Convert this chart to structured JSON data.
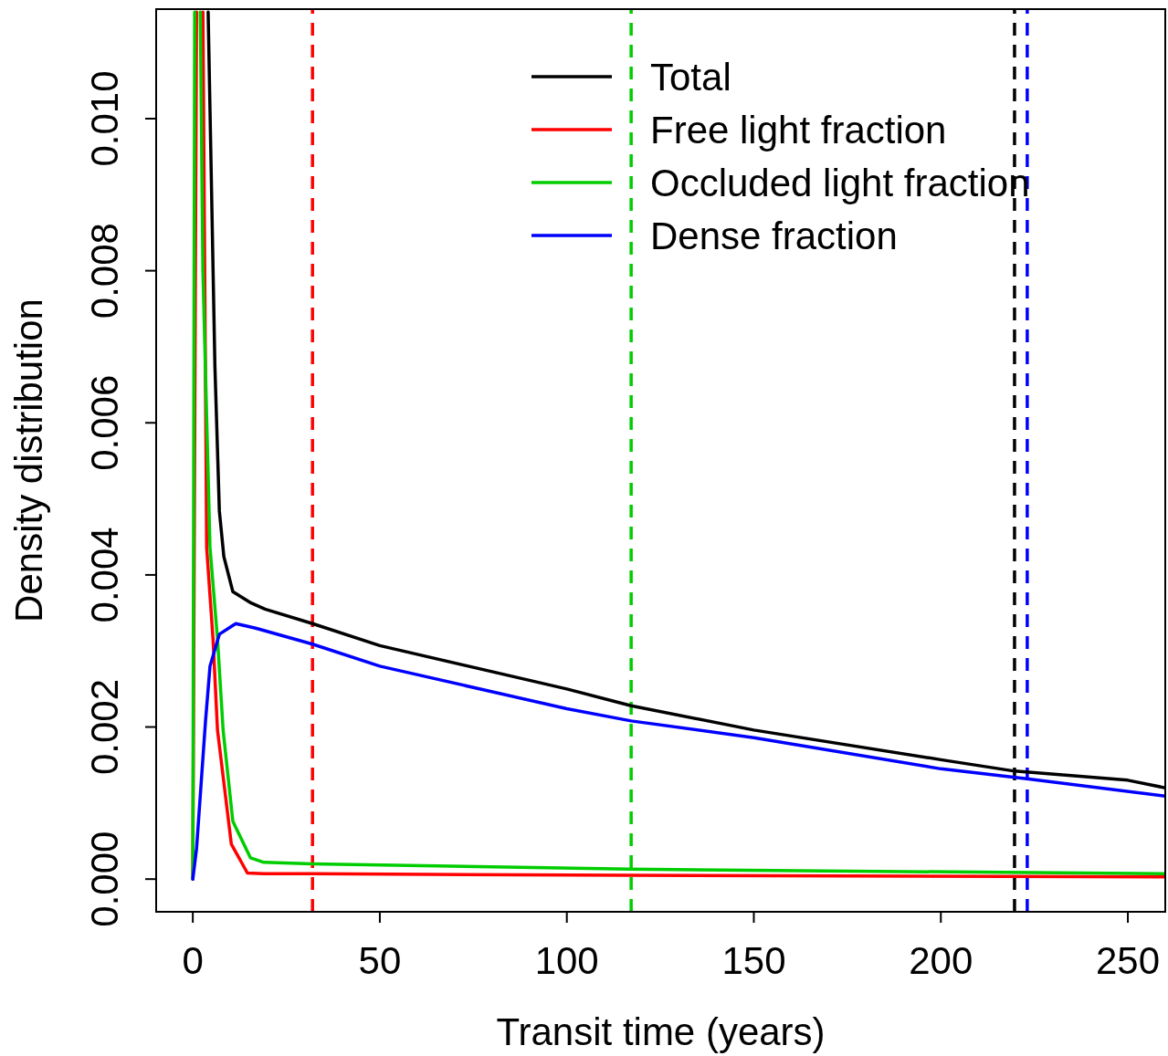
{
  "chart_data": {
    "type": "line",
    "xlabel": "Transit time (years)",
    "ylabel": "Density distribution",
    "xlim": [
      -9.8,
      260
    ],
    "ylim": [
      -0.00043,
      0.01144
    ],
    "xticks": [
      0,
      50,
      100,
      150,
      200,
      250
    ],
    "yticks": [
      {
        "value": 0,
        "label": "0.000"
      },
      {
        "value": 0.002,
        "label": "0.002"
      },
      {
        "value": 0.004,
        "label": "0.004"
      },
      {
        "value": 0.006,
        "label": "0.006"
      },
      {
        "value": 0.008,
        "label": "0.008"
      },
      {
        "value": 0.01,
        "label": "0.010"
      }
    ],
    "grid": false,
    "legend": "top right",
    "line_style": "solid",
    "marker": "none",
    "series": [
      {
        "name": "Total",
        "color": "#000000",
        "x": [
          4.1,
          5.9,
          7.1,
          8.3,
          10.7,
          15.6,
          19.3,
          32,
          50,
          100,
          117.2,
          150,
          200,
          219.7,
          250,
          260
        ],
        "values": [
          0.0114,
          0.00676,
          0.00484,
          0.00424,
          0.00378,
          0.00363,
          0.00355,
          0.00336,
          0.00307,
          0.0025,
          0.00228,
          0.00196,
          0.00157,
          0.00142,
          0.0013,
          0.0012
        ]
      },
      {
        "name": "Free light fraction",
        "color": "#ff0000",
        "x": [
          0,
          1.0,
          1.8,
          2.7,
          3.7,
          5.4,
          6.6,
          10.3,
          14.6,
          19,
          32,
          117,
          260
        ],
        "values": [
          0,
          0.0114,
          null,
          0.0114,
          0.00436,
          0.00316,
          0.00196,
          0.00046,
          8e-05,
          7e-05,
          7e-05,
          5e-05,
          3e-05
        ]
      },
      {
        "name": "Occluded light fraction",
        "color": "#00cd00",
        "x": [
          0,
          0.5,
          1.2,
          2.0,
          2.7,
          4.6,
          6.6,
          8.1,
          10.7,
          15.4,
          19,
          32,
          117,
          260
        ],
        "values": [
          0,
          0.0114,
          null,
          0.0114,
          0.008,
          0.00436,
          0.00316,
          0.00196,
          0.00076,
          0.00028,
          0.00022,
          0.0002,
          0.00013,
          7e-05
        ]
      },
      {
        "name": "Dense fraction",
        "color": "#0000ff",
        "x": [
          0,
          1,
          2.2,
          3.4,
          4.6,
          7.1,
          11.5,
          16.8,
          32,
          50,
          100,
          117.2,
          150,
          200,
          223,
          260
        ],
        "values": [
          0,
          0.0004,
          0.00124,
          0.00208,
          0.0028,
          0.00322,
          0.00336,
          0.0033,
          0.00309,
          0.0028,
          0.00224,
          0.00208,
          0.00186,
          0.00145,
          0.00132,
          0.00109
        ]
      }
    ],
    "ref_lines": [
      {
        "axis": "x",
        "value": 32,
        "color": "#ff0000",
        "line_style": "dashed"
      },
      {
        "axis": "x",
        "value": 117.2,
        "color": "#00cd00",
        "line_style": "dashed"
      },
      {
        "axis": "x",
        "value": 219.7,
        "color": "#000000",
        "line_style": "dashed"
      },
      {
        "axis": "x",
        "value": 223.1,
        "color": "#0000ff",
        "line_style": "dashed"
      }
    ]
  }
}
